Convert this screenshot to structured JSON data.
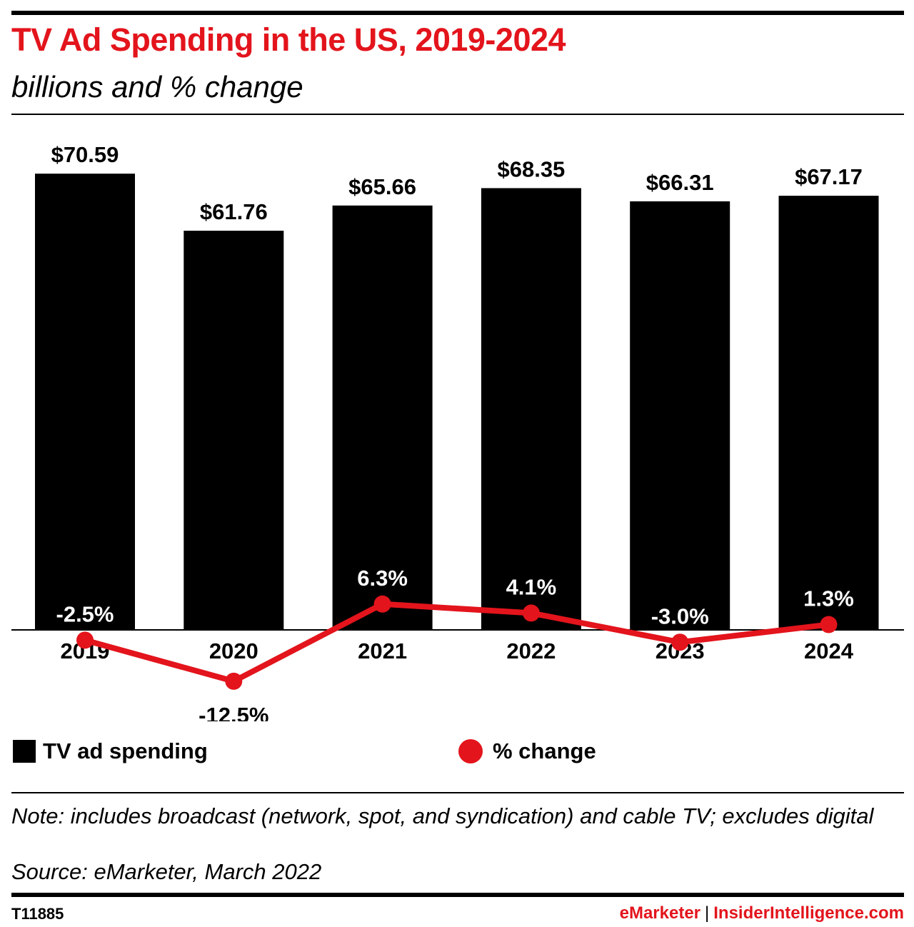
{
  "header": {
    "title": "TV Ad Spending in the US, 2019-2024",
    "subtitle": "billions and % change"
  },
  "chart_data": {
    "type": "bar",
    "categories": [
      "2019",
      "2020",
      "2021",
      "2022",
      "2023",
      "2024"
    ],
    "series": [
      {
        "name": "TV ad spending",
        "type": "bar",
        "values": [
          70.59,
          61.76,
          65.66,
          68.35,
          66.31,
          67.17
        ],
        "labels": [
          "$70.59",
          "$61.76",
          "$65.66",
          "$68.35",
          "$66.31",
          "$67.17"
        ],
        "color": "#000000"
      },
      {
        "name": "% change",
        "type": "line",
        "values": [
          -2.5,
          -12.5,
          6.3,
          4.1,
          -3.0,
          1.3
        ],
        "labels": [
          "-2.5%",
          "-12.5%",
          "6.3%",
          "4.1%",
          "-3.0%",
          "1.3%"
        ],
        "color": "#e3141c"
      }
    ],
    "legend": [
      "TV ad spending",
      "% change"
    ],
    "legend_position": "bottom",
    "grid": false
  },
  "legend": {
    "bar_label": "TV ad spending",
    "line_label": "% change"
  },
  "footer": {
    "note": "Note: includes broadcast (network, spot, and syndication) and cable TV; excludes digital",
    "source": "Source: eMarketer, March 2022",
    "chart_id": "T11885",
    "brand_left": "eMarketer",
    "brand_separator": "|",
    "brand_right": "InsiderIntelligence.com"
  },
  "colors": {
    "accent": "#e3141c",
    "bars": "#000000"
  }
}
